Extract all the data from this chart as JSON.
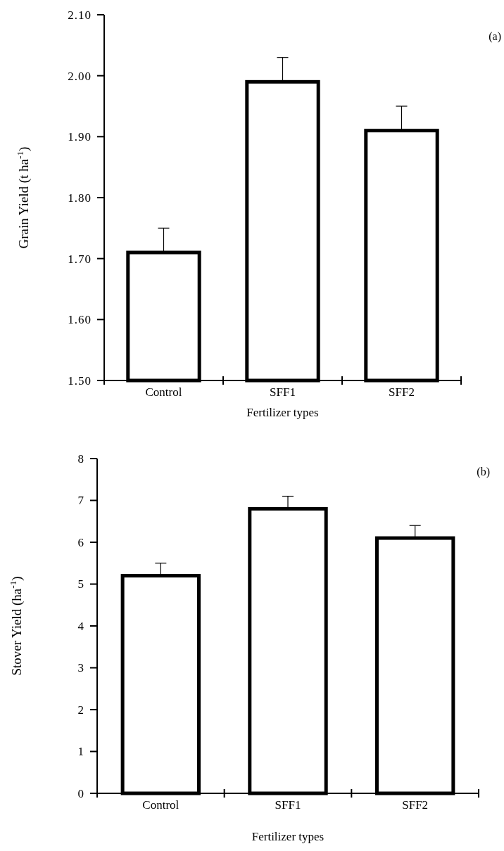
{
  "chart_data": [
    {
      "type": "bar",
      "categories": [
        "Control",
        "SFF1",
        "SFF2"
      ],
      "values": [
        1.71,
        1.99,
        1.91
      ],
      "errors": [
        [
          1.71,
          1.75
        ],
        [
          1.99,
          2.03
        ],
        [
          1.91,
          1.95
        ]
      ],
      "color": "#ffffff",
      "xlabel": "Fertilizer types",
      "ylabel": "Grain Yield (t ha$^{-1}$)",
      "ylim": [
        1.5,
        2.1
      ],
      "yticks": [
        {
          "value": 1.5,
          "label": "1.50"
        },
        {
          "value": 1.6,
          "label": "1.60"
        },
        {
          "value": 1.7,
          "label": "1.70"
        },
        {
          "value": 1.8,
          "label": "1.80"
        },
        {
          "value": 1.9,
          "label": "1.90"
        },
        {
          "value": 2.0,
          "label": "2.00"
        },
        {
          "value": 2.1,
          "label": "2.10"
        }
      ],
      "annotations": [
        "(a)"
      ]
    },
    {
      "type": "bar",
      "categories": [
        "Control",
        "SFF1",
        "SFF2"
      ],
      "values": [
        5.2,
        6.8,
        6.1
      ],
      "errors": [
        [
          5.2,
          5.5
        ],
        [
          6.8,
          7.1
        ],
        [
          6.1,
          6.4
        ]
      ],
      "color": "#ffffff",
      "xlabel": "Fertilizer types",
      "ylabel": "Stover Yield (ha$^{-1}$)",
      "ylim": [
        0,
        8
      ],
      "yticks": [
        0,
        1,
        2,
        3,
        4,
        5,
        6,
        7,
        8
      ],
      "annotations": [
        "(b)"
      ]
    }
  ]
}
